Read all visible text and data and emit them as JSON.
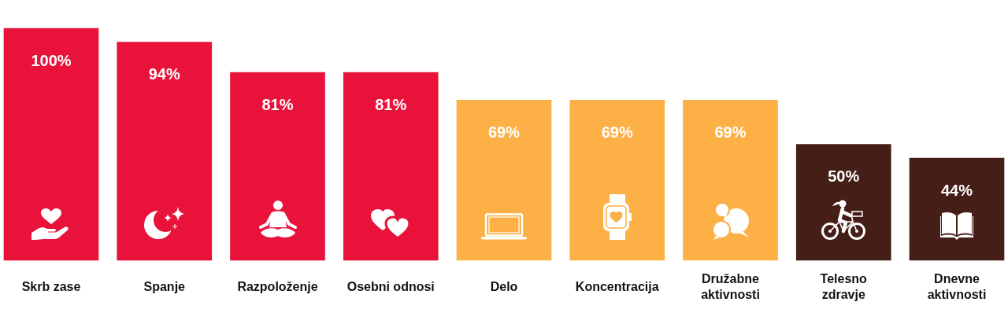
{
  "chart_data": {
    "type": "bar",
    "categories": [
      "Skrb zase",
      "Spanje",
      "Razpoloženje",
      "Osebni odnosi",
      "Delo",
      "Koncentracija",
      "Družabne aktivnosti",
      "Telesno zdravje",
      "Dnevne aktivnosti"
    ],
    "values": [
      100,
      94,
      81,
      81,
      69,
      69,
      69,
      50,
      44
    ],
    "colors": [
      "#e8123b",
      "#e8123b",
      "#e8123b",
      "#e8123b",
      "#fcb045",
      "#fcb045",
      "#fcb045",
      "#451e17",
      "#451e17"
    ],
    "value_labels": [
      "100%",
      "94%",
      "81%",
      "81%",
      "69%",
      "69%",
      "69%",
      "50%",
      "44%"
    ],
    "grid": false,
    "legend": false
  }
}
